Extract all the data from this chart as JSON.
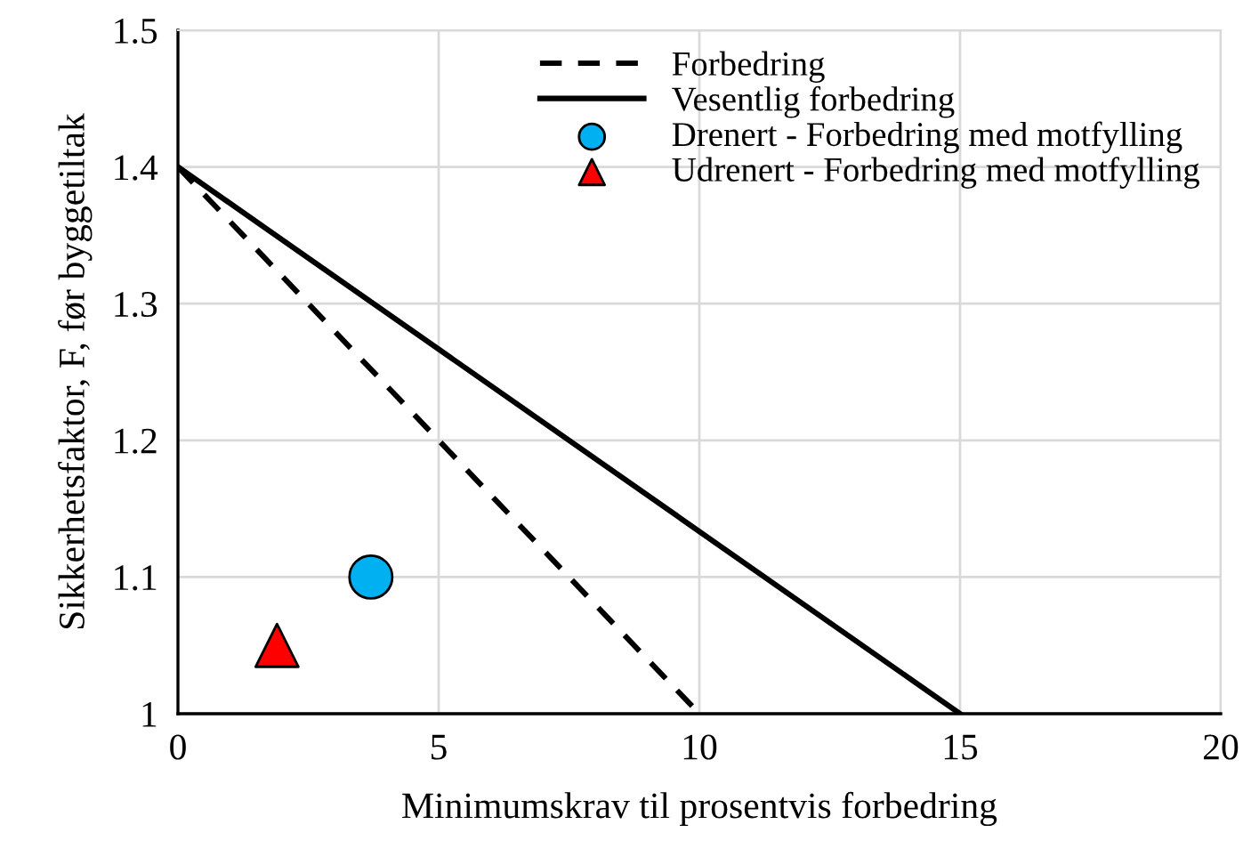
{
  "chart_data": {
    "type": "line",
    "xlabel": "Minimumskrav til prosentvis forbedring",
    "ylabel": "Sikkerhetsfaktor, F, før byggetiltak",
    "xlim": [
      0,
      20
    ],
    "xticks": [
      0,
      5,
      10,
      15,
      20
    ],
    "ylim": [
      1,
      1.5
    ],
    "yticks": [
      1,
      1.1,
      1.2,
      1.3,
      1.4,
      1.5
    ],
    "grid": true,
    "legend": "top right",
    "series": [
      {
        "name": "Forbedring",
        "color": "#000000",
        "line_style": "dashed",
        "marker": "none",
        "x": [
          0,
          10
        ],
        "values": [
          1.4,
          1.0
        ]
      },
      {
        "name": "Vesentlig forbedring",
        "color": "#000000",
        "line_style": "solid",
        "marker": "none",
        "x": [
          0,
          15
        ],
        "values": [
          1.4,
          1.0
        ]
      },
      {
        "name": "Drenert - Forbedring med motfylling",
        "type": "scatter",
        "color": "#00b0f0",
        "marker": "circle",
        "x": [
          3.7
        ],
        "values": [
          1.1
        ]
      },
      {
        "name": "Udrenert - Forbedring med motfylling",
        "type": "scatter",
        "color": "#ff0000",
        "marker": "triangle",
        "x": [
          1.9
        ],
        "values": [
          1.05
        ]
      }
    ]
  }
}
